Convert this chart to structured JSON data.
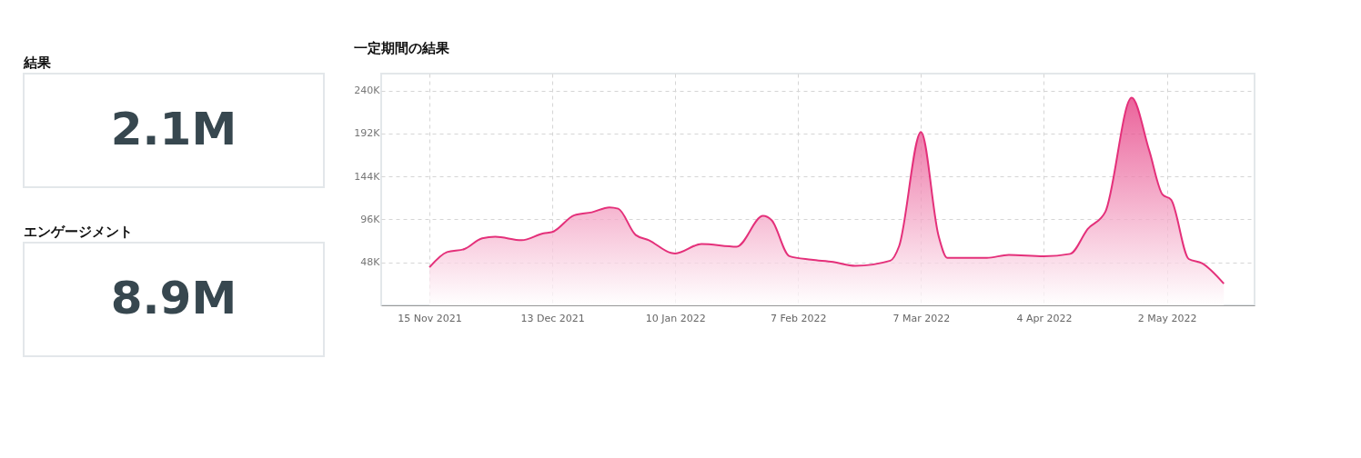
{
  "chart_data": [
    {
      "type": "other",
      "title": "結果",
      "annotations": [
        "2.1M"
      ]
    },
    {
      "type": "other",
      "title": "エンゲージメント",
      "annotations": [
        "8.9M"
      ]
    },
    {
      "type": "area",
      "title": "一定期間の結果",
      "grid": true,
      "xlim": [
        "2021-11-04",
        "2022-05-22"
      ],
      "xticks": [
        {
          "value": "2021-11-15",
          "label": "15 Nov 2021"
        },
        {
          "value": "2021-12-13",
          "label": "13 Dec 2021"
        },
        {
          "value": "2022-01-10",
          "label": "10 Jan 2022"
        },
        {
          "value": "2022-02-07",
          "label": "7 Feb 2022"
        },
        {
          "value": "2022-03-07",
          "label": "7 Mar 2022"
        },
        {
          "value": "2022-04-04",
          "label": "4 Apr 2022"
        },
        {
          "value": "2022-05-02",
          "label": "2 May 2022"
        }
      ],
      "ylim": [
        0,
        259000
      ],
      "yticks": [
        {
          "value": 48000,
          "label": "48K"
        },
        {
          "value": 96000,
          "label": "96K"
        },
        {
          "value": 144000,
          "label": "144K"
        },
        {
          "value": 192000,
          "label": "192K"
        },
        {
          "value": 240000,
          "label": "240K"
        }
      ],
      "x": [
        "2021-11-15",
        "2021-11-19",
        "2021-11-23",
        "2021-11-27",
        "2021-11-30",
        "2021-12-06",
        "2021-12-11",
        "2021-12-13",
        "2021-12-18",
        "2021-12-22",
        "2021-12-26",
        "2021-12-28",
        "2022-01-01",
        "2022-01-04",
        "2022-01-09",
        "2022-01-10",
        "2022-01-16",
        "2022-01-24",
        "2022-01-30",
        "2022-02-01",
        "2022-02-05",
        "2022-02-10",
        "2022-02-15",
        "2022-02-20",
        "2022-02-28",
        "2022-03-02",
        "2022-03-07",
        "2022-03-11",
        "2022-03-13",
        "2022-03-22",
        "2022-03-27",
        "2022-04-04",
        "2022-04-10",
        "2022-04-14",
        "2022-04-18",
        "2022-04-24",
        "2022-04-28",
        "2022-05-01",
        "2022-05-03",
        "2022-05-07",
        "2022-05-10",
        "2022-05-15"
      ],
      "series": [
        {
          "color": "#e4307a",
          "values": [
            42600,
            59500,
            63000,
            75000,
            76700,
            72800,
            80500,
            82000,
            100700,
            104000,
            109500,
            108000,
            78600,
            72800,
            58700,
            58000,
            68600,
            65600,
            100000,
            95000,
            55000,
            51000,
            48400,
            44200,
            49900,
            66000,
            193800,
            77700,
            53000,
            53000,
            56400,
            54900,
            57500,
            85400,
            104500,
            232000,
            173000,
            124000,
            118000,
            51800,
            47200,
            24300
          ]
        }
      ]
    }
  ]
}
